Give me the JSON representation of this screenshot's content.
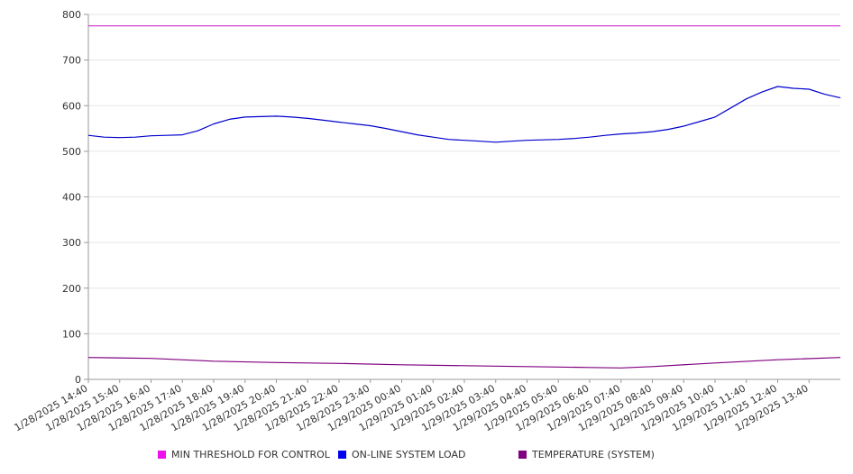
{
  "chart_data": {
    "type": "line",
    "title": "",
    "xlabel": "",
    "ylabel": "",
    "ylim": [
      0,
      800
    ],
    "yticks": [
      0,
      100,
      200,
      300,
      400,
      500,
      600,
      700,
      800
    ],
    "xlim": [
      "1/28/2025 14:40",
      "1/29/2025 14:40"
    ],
    "x_tick_labels": [
      "1/28/2025 14:40",
      "1/28/2025 15:40",
      "1/28/2025 16:40",
      "1/28/2025 17:40",
      "1/28/2025 18:40",
      "1/28/2025 19:40",
      "1/28/2025 20:40",
      "1/28/2025 21:40",
      "1/28/2025 22:40",
      "1/28/2025 23:40",
      "1/29/2025 00:40",
      "1/29/2025 01:40",
      "1/29/2025 02:40",
      "1/29/2025 03:40",
      "1/29/2025 04:40",
      "1/29/2025 05:40",
      "1/29/2025 06:40",
      "1/29/2025 07:40",
      "1/29/2025 08:40",
      "1/29/2025 09:40",
      "1/29/2025 10:40",
      "1/29/2025 11:40",
      "1/29/2025 12:40",
      "1/29/2025 13:40"
    ],
    "grid": true,
    "legend_position": "bottom",
    "series": [
      {
        "name": "MIN THRESHOLD FOR CONTROL",
        "color": "#cc33cc",
        "x": [
          "1/28/2025 14:40",
          "1/29/2025 14:40"
        ],
        "y": [
          775,
          775
        ]
      },
      {
        "name": "ON-LINE SYSTEM LOAD",
        "color": "#0000cc",
        "x": [
          "1/28/2025 14:40",
          "1/28/2025 15:10",
          "1/28/2025 15:40",
          "1/28/2025 16:10",
          "1/28/2025 16:40",
          "1/28/2025 17:10",
          "1/28/2025 17:40",
          "1/28/2025 18:10",
          "1/28/2025 18:40",
          "1/28/2025 19:10",
          "1/28/2025 19:40",
          "1/28/2025 20:10",
          "1/28/2025 20:40",
          "1/28/2025 21:10",
          "1/28/2025 21:40",
          "1/28/2025 22:10",
          "1/28/2025 22:40",
          "1/28/2025 23:10",
          "1/28/2025 23:40",
          "1/29/2025 00:10",
          "1/29/2025 00:40",
          "1/29/2025 01:10",
          "1/29/2025 01:40",
          "1/29/2025 02:10",
          "1/29/2025 02:40",
          "1/29/2025 03:10",
          "1/29/2025 03:40",
          "1/29/2025 04:10",
          "1/29/2025 04:40",
          "1/29/2025 05:10",
          "1/29/2025 05:40",
          "1/29/2025 06:10",
          "1/29/2025 06:40",
          "1/29/2025 07:10",
          "1/29/2025 07:40",
          "1/29/2025 08:10",
          "1/29/2025 08:40",
          "1/29/2025 09:10",
          "1/29/2025 09:40",
          "1/29/2025 10:10",
          "1/29/2025 10:40",
          "1/29/2025 11:10",
          "1/29/2025 11:40",
          "1/29/2025 12:10",
          "1/29/2025 12:40",
          "1/29/2025 13:10",
          "1/29/2025 13:40",
          "1/29/2025 14:10",
          "1/29/2025 14:40"
        ],
        "y": [
          535,
          531,
          530,
          531,
          534,
          535,
          536,
          545,
          560,
          570,
          575,
          576,
          577,
          575,
          572,
          568,
          564,
          560,
          556,
          550,
          543,
          536,
          531,
          526,
          524,
          522,
          520,
          522,
          524,
          525,
          526,
          528,
          531,
          535,
          538,
          540,
          543,
          548,
          555,
          565,
          575,
          595,
          615,
          630,
          642,
          638,
          636,
          625,
          617
        ]
      },
      {
        "name": "TEMPERATURE (SYSTEM)",
        "color": "#800080",
        "x": [
          "1/28/2025 14:40",
          "1/28/2025 16:40",
          "1/28/2025 18:40",
          "1/28/2025 20:40",
          "1/28/2025 22:40",
          "1/29/2025 00:40",
          "1/29/2025 02:40",
          "1/29/2025 04:40",
          "1/29/2025 06:40",
          "1/29/2025 07:40",
          "1/29/2025 08:40",
          "1/29/2025 10:40",
          "1/29/2025 12:40",
          "1/29/2025 14:40"
        ],
        "y": [
          48,
          46,
          40,
          37,
          35,
          32,
          30,
          28,
          26,
          25,
          28,
          36,
          43,
          48
        ]
      }
    ]
  }
}
